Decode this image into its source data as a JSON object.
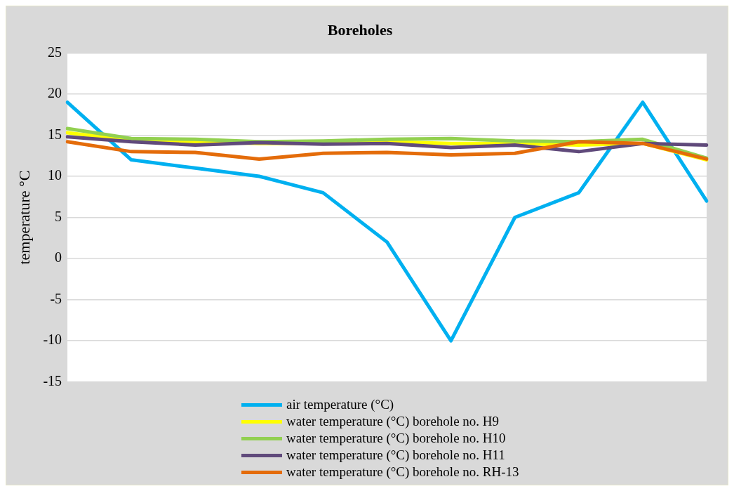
{
  "chart_data": {
    "type": "line",
    "title": "Boreholes",
    "ylabel": "temperature °C",
    "categories": [
      null,
      null,
      null,
      null,
      null,
      null,
      null,
      null,
      null,
      null,
      null
    ],
    "series": [
      {
        "name": "air temperature (°C)",
        "color": "#00b0f0",
        "values": [
          19,
          12,
          11,
          10,
          8,
          2,
          -10,
          5,
          8,
          19,
          7
        ]
      },
      {
        "name": "water temperature (°C) borehole  no. H9",
        "color": "#ffff00",
        "values": [
          15.3,
          14.4,
          14.2,
          14.0,
          14.0,
          14.2,
          14.0,
          14.0,
          13.8,
          14.0,
          12.0
        ]
      },
      {
        "name": "water temperature (°C) borehole  no. H10",
        "color": "#92d050",
        "values": [
          15.8,
          14.6,
          14.5,
          14.2,
          14.3,
          14.5,
          14.6,
          14.3,
          14.2,
          14.5,
          12.2
        ]
      },
      {
        "name": "water temperature (°C) borehole  no. H11",
        "color": "#604a7b",
        "values": [
          14.8,
          14.2,
          13.8,
          14.1,
          13.9,
          14.0,
          13.5,
          13.8,
          13.0,
          14.0,
          13.8
        ]
      },
      {
        "name": "water temperature (°C) borehole  no. RH-13",
        "color": "#e46c0a",
        "values": [
          14.2,
          13.0,
          12.9,
          12.1,
          12.8,
          12.9,
          12.6,
          12.8,
          14.2,
          14.0,
          12.1
        ]
      }
    ],
    "ylim": [
      -15,
      25
    ],
    "yticks": [
      -15,
      -10,
      -5,
      0,
      5,
      10,
      15,
      20,
      25
    ],
    "grid": "y",
    "legend": "bottom",
    "marker": "none",
    "line_style": "solid"
  }
}
